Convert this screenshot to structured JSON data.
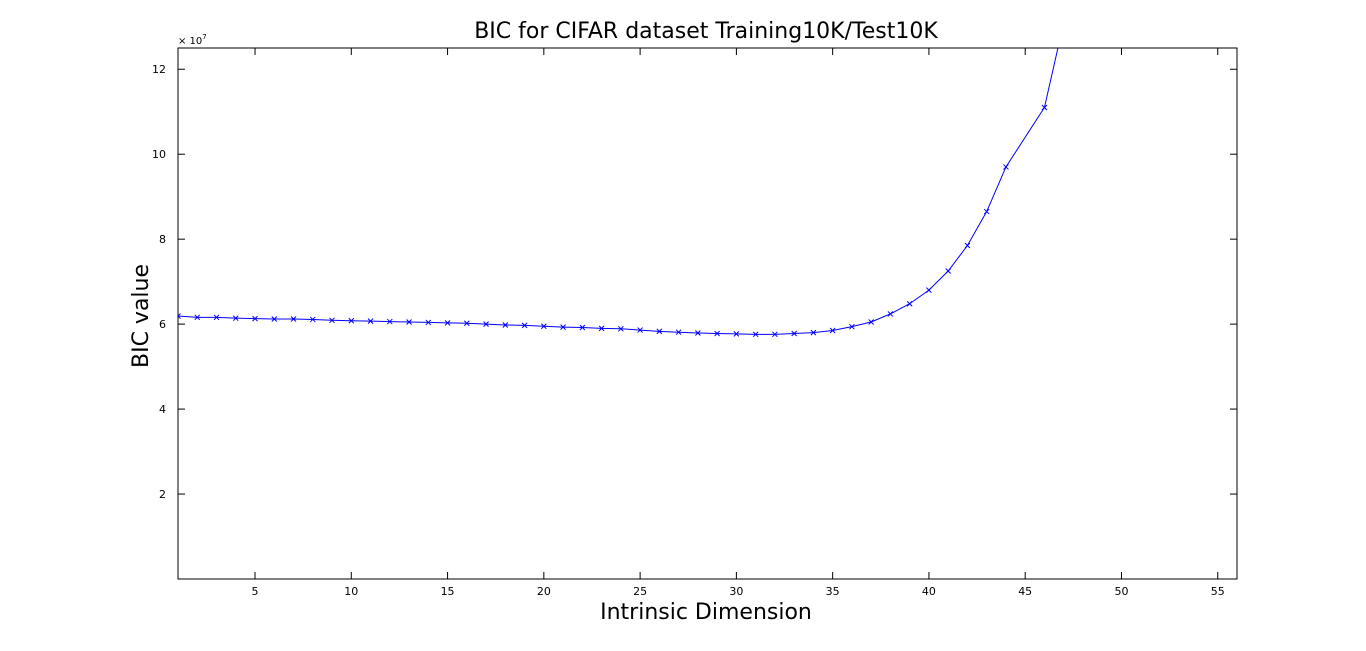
{
  "chart_data": {
    "type": "line",
    "title": "BIC for CIFAR dataset Training10K/Test10K",
    "xlabel": "Intrinsic Dimension",
    "ylabel": "BIC value",
    "y_exponent_label": "× 10^7",
    "y_exponent_base": "× 10",
    "y_exponent_power": "7",
    "xlim": [
      1,
      56
    ],
    "ylim": [
      0,
      12.5
    ],
    "x_ticks": [
      5,
      10,
      15,
      20,
      25,
      30,
      35,
      40,
      45,
      50,
      55
    ],
    "x_tick_labels": [
      "5",
      "10",
      "15",
      "20",
      "25",
      "30",
      "35",
      "40",
      "45",
      "50",
      "55"
    ],
    "y_ticks": [
      2,
      4,
      6,
      8,
      10,
      12
    ],
    "y_tick_labels": [
      "2",
      "4",
      "6",
      "8",
      "10",
      "12"
    ],
    "grid": false,
    "legend": "none",
    "series": [
      {
        "color": "#0000ff",
        "marker": "x",
        "x": [
          1,
          2,
          3,
          4,
          5,
          6,
          7,
          8,
          9,
          10,
          11,
          12,
          13,
          14,
          15,
          16,
          17,
          18,
          19,
          20,
          21,
          22,
          23,
          24,
          25,
          26,
          27,
          28,
          29,
          30,
          31,
          32,
          33,
          34,
          35,
          36,
          37,
          38,
          39,
          40,
          41,
          42,
          43,
          44,
          46,
          47.2
        ],
        "y": [
          6.19,
          6.16,
          6.16,
          6.14,
          6.13,
          6.12,
          6.12,
          6.11,
          6.09,
          6.08,
          6.07,
          6.06,
          6.05,
          6.04,
          6.03,
          6.02,
          6.0,
          5.98,
          5.97,
          5.95,
          5.93,
          5.92,
          5.9,
          5.89,
          5.86,
          5.83,
          5.81,
          5.79,
          5.78,
          5.77,
          5.76,
          5.76,
          5.78,
          5.8,
          5.85,
          5.94,
          6.05,
          6.24,
          6.48,
          6.8,
          7.25,
          7.85,
          8.65,
          9.7,
          11.1,
          13.5
        ],
        "markers_shown": 45
      }
    ]
  }
}
